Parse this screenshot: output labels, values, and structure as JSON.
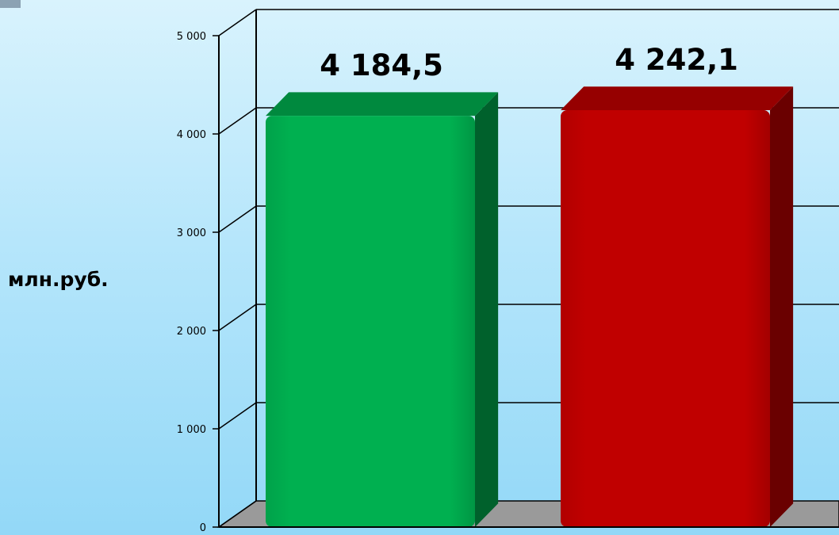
{
  "chart_data": {
    "type": "bar",
    "categories": [
      "",
      ""
    ],
    "values": [
      4184.5,
      4242.1
    ],
    "value_labels": [
      "4 184,5",
      "4 242,1"
    ],
    "colors": [
      "#00b050",
      "#c00000"
    ],
    "ylabel": "млн.руб.",
    "ylim": [
      0,
      5000
    ],
    "yticks": [
      0,
      1000,
      2000,
      3000,
      4000,
      5000
    ],
    "ytick_labels": [
      "0",
      "1 000",
      "2 000",
      "3 000",
      "4 000",
      "5 000"
    ],
    "grid": true,
    "three_d": true,
    "legend": "none"
  }
}
